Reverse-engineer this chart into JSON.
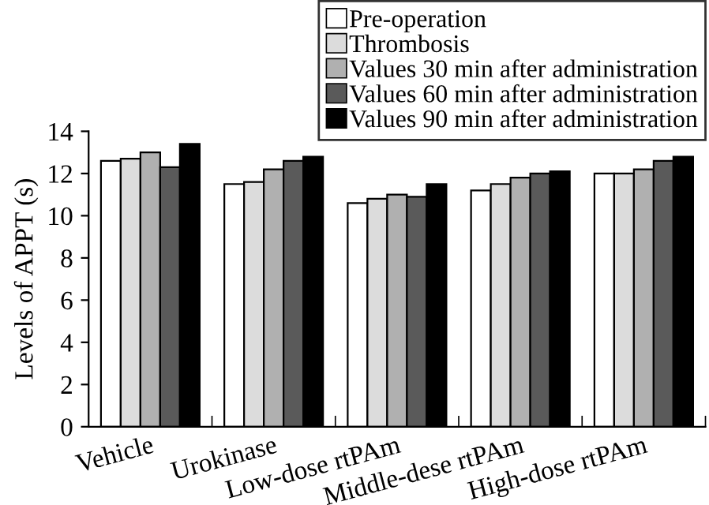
{
  "chart_data": {
    "type": "bar",
    "ylabel": "Levels of APPT (s)",
    "categories": [
      "Vehicle",
      "Urokinase",
      "Low-dose rtPAm",
      "Middle-dese rtPAm",
      "High-dose rtPAm"
    ],
    "series": [
      {
        "name": "Pre-operation",
        "color": "#ffffff",
        "values": [
          12.6,
          11.5,
          10.6,
          11.2,
          12.0
        ]
      },
      {
        "name": "Thrombosis",
        "color": "#dcdcdc",
        "values": [
          12.7,
          11.6,
          10.8,
          11.5,
          12.0
        ]
      },
      {
        "name": "Values 30 min after administration",
        "color": "#b0b0b0",
        "values": [
          13.0,
          12.2,
          11.0,
          11.8,
          12.2
        ]
      },
      {
        "name": "Values 60 min after administration",
        "color": "#5a5a5a",
        "values": [
          12.3,
          12.6,
          10.9,
          12.0,
          12.6
        ]
      },
      {
        "name": "Values 90 min after administration",
        "color": "#000000",
        "values": [
          13.4,
          12.8,
          11.5,
          12.1,
          12.8
        ]
      }
    ],
    "ylim": [
      0,
      14
    ],
    "yticks": [
      0,
      2,
      4,
      6,
      8,
      10,
      12,
      14
    ],
    "grid": false,
    "legend": "top right"
  }
}
